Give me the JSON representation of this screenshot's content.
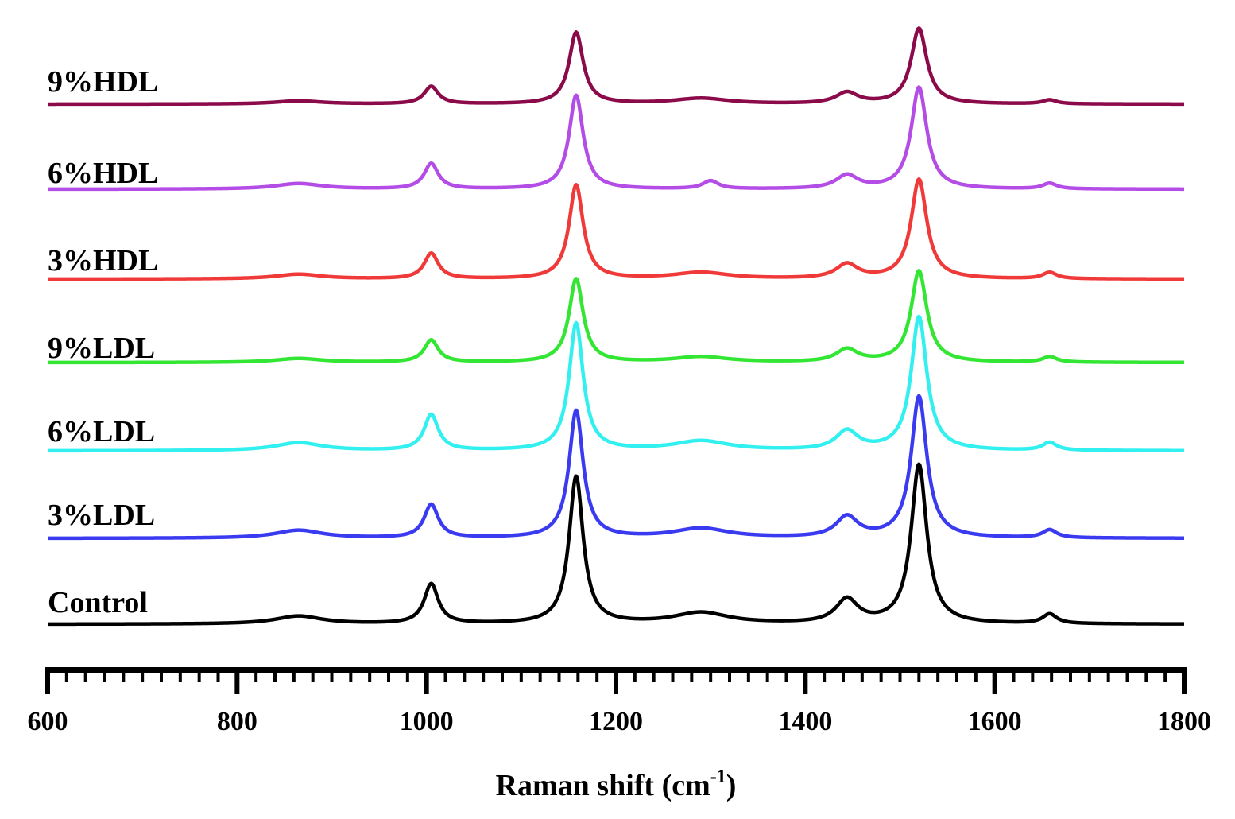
{
  "chart_data": {
    "type": "line",
    "title": "",
    "xlabel": "Raman shift (cm",
    "xlabel_sup": "-1",
    "xlabel_close": ")",
    "ylabel": "",
    "xlim": [
      600,
      1800
    ],
    "xticks": [
      600,
      800,
      1000,
      1200,
      1400,
      1600,
      1800
    ],
    "xtick_labels": [
      "600",
      "800",
      "1000",
      "1200",
      "1400",
      "1600",
      "1800"
    ],
    "grid": false,
    "legend": "inline-left",
    "series": [
      {
        "name": "9%HDL",
        "color": "#8B0A4A",
        "peaks": [
          {
            "x": 865,
            "h": 4
          },
          {
            "x": 1005,
            "h": 22
          },
          {
            "x": 1158,
            "h": 90
          },
          {
            "x": 1290,
            "h": 7
          },
          {
            "x": 1444,
            "h": 14
          },
          {
            "x": 1520,
            "h": 95
          },
          {
            "x": 1658,
            "h": 5
          }
        ]
      },
      {
        "name": "6%HDL",
        "color": "#B44CE6",
        "peaks": [
          {
            "x": 865,
            "h": 7
          },
          {
            "x": 1005,
            "h": 32
          },
          {
            "x": 1158,
            "h": 118
          },
          {
            "x": 1300,
            "h": 10
          },
          {
            "x": 1444,
            "h": 17
          },
          {
            "x": 1520,
            "h": 128
          },
          {
            "x": 1658,
            "h": 7
          }
        ]
      },
      {
        "name": "3%HDL",
        "color": "#F03A3A",
        "peaks": [
          {
            "x": 865,
            "h": 6
          },
          {
            "x": 1005,
            "h": 32
          },
          {
            "x": 1158,
            "h": 118
          },
          {
            "x": 1290,
            "h": 8
          },
          {
            "x": 1444,
            "h": 18
          },
          {
            "x": 1520,
            "h": 125
          },
          {
            "x": 1658,
            "h": 8
          }
        ]
      },
      {
        "name": "9%LDL",
        "color": "#33E633",
        "peaks": [
          {
            "x": 865,
            "h": 5
          },
          {
            "x": 1005,
            "h": 28
          },
          {
            "x": 1158,
            "h": 105
          },
          {
            "x": 1290,
            "h": 7
          },
          {
            "x": 1444,
            "h": 16
          },
          {
            "x": 1520,
            "h": 115
          },
          {
            "x": 1658,
            "h": 7
          }
        ]
      },
      {
        "name": "6%LDL",
        "color": "#33F0F0",
        "peaks": [
          {
            "x": 865,
            "h": 10
          },
          {
            "x": 1005,
            "h": 45
          },
          {
            "x": 1158,
            "h": 160
          },
          {
            "x": 1290,
            "h": 12
          },
          {
            "x": 1444,
            "h": 24
          },
          {
            "x": 1520,
            "h": 168
          },
          {
            "x": 1658,
            "h": 10
          }
        ]
      },
      {
        "name": "3%LDL",
        "color": "#3A3AF0",
        "peaks": [
          {
            "x": 865,
            "h": 10
          },
          {
            "x": 1005,
            "h": 42
          },
          {
            "x": 1158,
            "h": 160
          },
          {
            "x": 1290,
            "h": 12
          },
          {
            "x": 1444,
            "h": 26
          },
          {
            "x": 1520,
            "h": 178
          },
          {
            "x": 1658,
            "h": 10
          }
        ]
      },
      {
        "name": "Control",
        "color": "#000000",
        "peaks": [
          {
            "x": 865,
            "h": 10
          },
          {
            "x": 1005,
            "h": 50
          },
          {
            "x": 1158,
            "h": 185
          },
          {
            "x": 1290,
            "h": 14
          },
          {
            "x": 1444,
            "h": 30
          },
          {
            "x": 1520,
            "h": 200
          },
          {
            "x": 1658,
            "h": 12
          }
        ]
      }
    ]
  }
}
